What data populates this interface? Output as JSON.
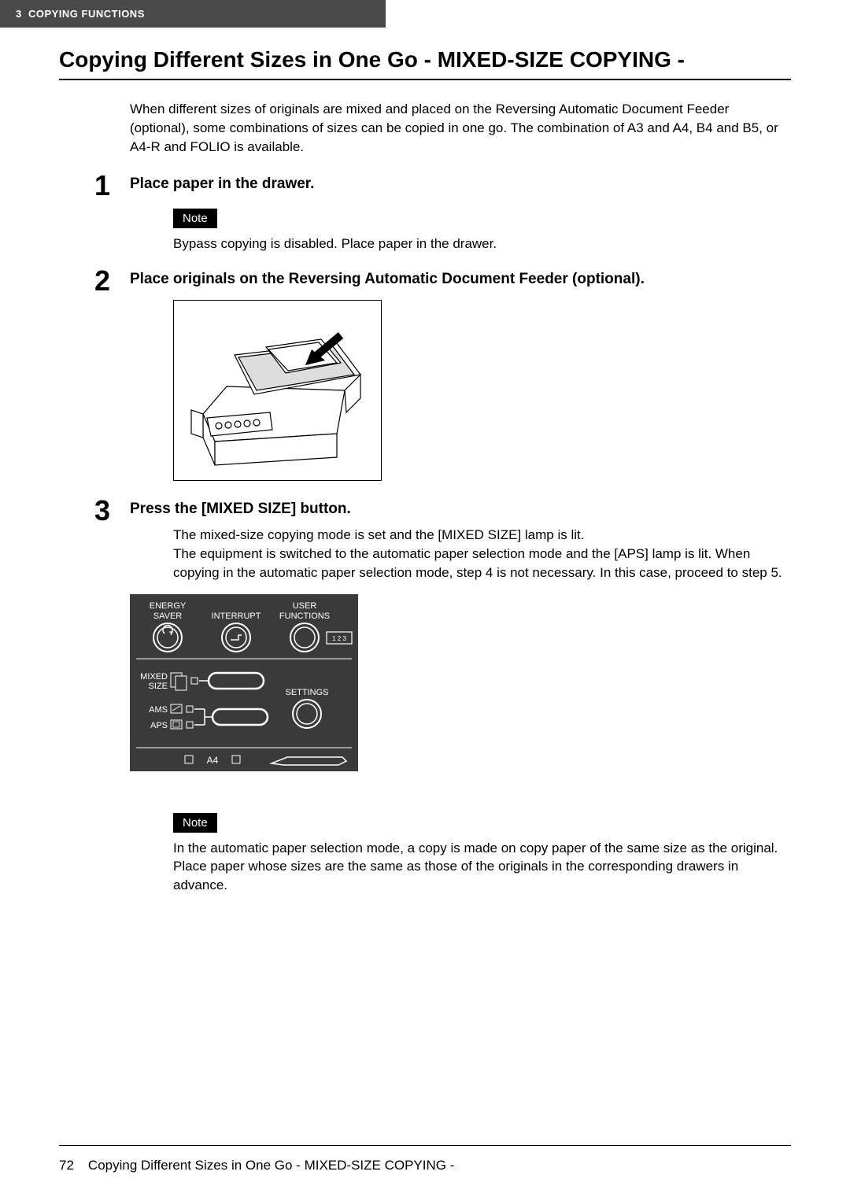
{
  "header": {
    "chapter": "3",
    "chapter_title": "COPYING FUNCTIONS"
  },
  "title": "Copying Different Sizes in One Go - MIXED-SIZE COPYING -",
  "intro": "When different sizes of originals are mixed and placed on the Reversing Automatic Document Feeder (optional), some combinations of sizes can be copied in one go. The combination of A3 and A4, B4 and B5, or A4-R and FOLIO is available.",
  "steps": [
    {
      "num": "1",
      "heading": "Place paper in the drawer.",
      "note_label": "Note",
      "note_text": "Bypass copying is disabled. Place paper in the drawer."
    },
    {
      "num": "2",
      "heading": "Place originals on the Reversing Automatic Document Feeder (optional)."
    },
    {
      "num": "3",
      "heading": "Press the [MIXED SIZE] button.",
      "body": "The mixed-size copying mode is set and the [MIXED SIZE] lamp is lit.\nThe equipment is switched to the automatic paper selection mode and the [APS] lamp is lit. When copying in the automatic paper selection mode, step 4 is not necessary. In this case, proceed to step 5.",
      "note_label": "Note",
      "note_text": "In the automatic paper selection mode, a copy is made on copy paper of the same size as the original. Place paper whose sizes are the same as those of the originals in the corresponding drawers in advance."
    }
  ],
  "panel": {
    "btn1_line1": "ENERGY",
    "btn1_line2": "SAVER",
    "btn2": "INTERRUPT",
    "btn3_line1": "USER",
    "btn3_line2": "FUNCTIONS",
    "mixed_line1": "MIXED",
    "mixed_line2": "SIZE",
    "ams": "AMS",
    "aps": "APS",
    "settings": "SETTINGS",
    "a4": "A4",
    "counter": "1 2 3"
  },
  "footer": {
    "page_number": "72",
    "text": "Copying Different Sizes in One Go - MIXED-SIZE COPYING -"
  }
}
